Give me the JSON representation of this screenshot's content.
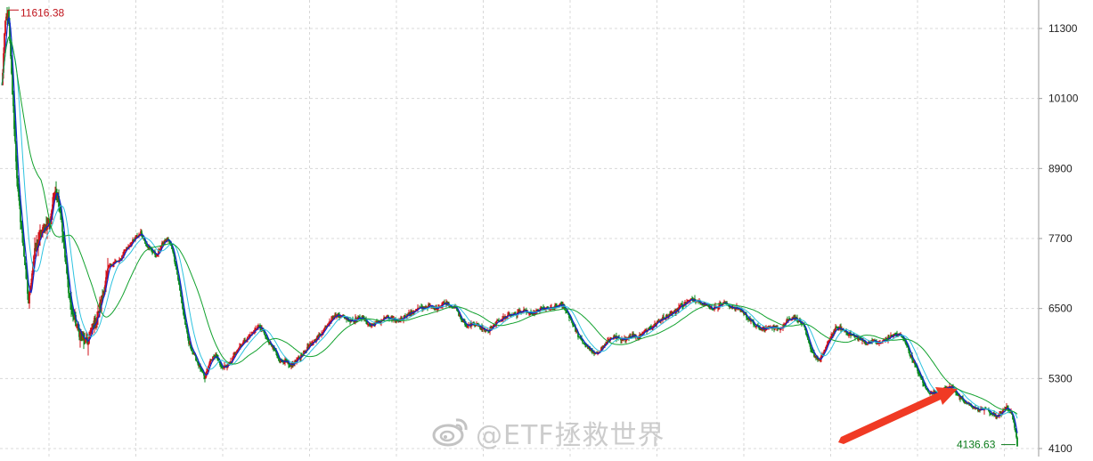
{
  "chart_data": {
    "type": "candlestick",
    "y_ticks": [
      4100,
      5300,
      6500,
      7700,
      8900,
      10100,
      11300
    ],
    "y_tick_labels": [
      "4100",
      "5300",
      "6500",
      "7700",
      "8900",
      "10100",
      "11300"
    ],
    "ylim": [
      4000,
      11900
    ],
    "grid": true,
    "annotations": {
      "high": 11616.38,
      "high_label": "11616.38",
      "low": 4136.63,
      "low_label": "4136.63"
    },
    "key_path": [
      [
        0,
        10300
      ],
      [
        4,
        11400
      ],
      [
        7,
        11616.38
      ],
      [
        12,
        10200
      ],
      [
        18,
        8500
      ],
      [
        24,
        7600
      ],
      [
        30,
        6600
      ],
      [
        36,
        7400
      ],
      [
        42,
        7700
      ],
      [
        48,
        7900
      ],
      [
        54,
        8000
      ],
      [
        60,
        8600
      ],
      [
        66,
        8200
      ],
      [
        72,
        7200
      ],
      [
        78,
        6500
      ],
      [
        84,
        6200
      ],
      [
        90,
        6000
      ],
      [
        96,
        5900
      ],
      [
        102,
        6200
      ],
      [
        108,
        6400
      ],
      [
        114,
        6800
      ],
      [
        120,
        7200
      ],
      [
        126,
        7300
      ],
      [
        132,
        7300
      ],
      [
        138,
        7500
      ],
      [
        144,
        7600
      ],
      [
        150,
        7700
      ],
      [
        156,
        7800
      ],
      [
        162,
        7600
      ],
      [
        168,
        7500
      ],
      [
        174,
        7400
      ],
      [
        180,
        7600
      ],
      [
        186,
        7700
      ],
      [
        192,
        7500
      ],
      [
        198,
        7000
      ],
      [
        204,
        6400
      ],
      [
        210,
        5900
      ],
      [
        216,
        5700
      ],
      [
        222,
        5500
      ],
      [
        228,
        5300
      ],
      [
        234,
        5600
      ],
      [
        240,
        5700
      ],
      [
        246,
        5500
      ],
      [
        252,
        5500
      ],
      [
        258,
        5600
      ],
      [
        264,
        5800
      ],
      [
        270,
        5900
      ],
      [
        276,
        6000
      ],
      [
        282,
        6100
      ],
      [
        288,
        6200
      ],
      [
        294,
        6100
      ],
      [
        300,
        5900
      ],
      [
        306,
        5800
      ],
      [
        312,
        5600
      ],
      [
        318,
        5600
      ],
      [
        324,
        5500
      ],
      [
        330,
        5600
      ],
      [
        336,
        5700
      ],
      [
        342,
        5800
      ],
      [
        348,
        5900
      ],
      [
        354,
        6000
      ],
      [
        360,
        6100
      ],
      [
        366,
        6250
      ],
      [
        372,
        6350
      ],
      [
        378,
        6400
      ],
      [
        384,
        6350
      ],
      [
        390,
        6300
      ],
      [
        396,
        6300
      ],
      [
        402,
        6350
      ],
      [
        408,
        6300
      ],
      [
        414,
        6200
      ],
      [
        420,
        6250
      ],
      [
        426,
        6300
      ],
      [
        432,
        6350
      ],
      [
        438,
        6300
      ],
      [
        444,
        6280
      ],
      [
        450,
        6350
      ],
      [
        456,
        6400
      ],
      [
        462,
        6450
      ],
      [
        468,
        6500
      ],
      [
        474,
        6500
      ],
      [
        480,
        6550
      ],
      [
        486,
        6500
      ],
      [
        492,
        6550
      ],
      [
        498,
        6600
      ],
      [
        504,
        6550
      ],
      [
        510,
        6500
      ],
      [
        516,
        6300
      ],
      [
        522,
        6200
      ],
      [
        528,
        6250
      ],
      [
        534,
        6200
      ],
      [
        540,
        6150
      ],
      [
        546,
        6100
      ],
      [
        552,
        6200
      ],
      [
        558,
        6300
      ],
      [
        564,
        6350
      ],
      [
        570,
        6400
      ],
      [
        576,
        6400
      ],
      [
        582,
        6450
      ],
      [
        588,
        6450
      ],
      [
        594,
        6400
      ],
      [
        600,
        6450
      ],
      [
        606,
        6500
      ],
      [
        612,
        6500
      ],
      [
        618,
        6500
      ],
      [
        624,
        6550
      ],
      [
        630,
        6550
      ],
      [
        636,
        6400
      ],
      [
        642,
        6200
      ],
      [
        648,
        6000
      ],
      [
        654,
        5900
      ],
      [
        660,
        5800
      ],
      [
        666,
        5700
      ],
      [
        672,
        5800
      ],
      [
        678,
        5900
      ],
      [
        684,
        6000
      ],
      [
        690,
        6000
      ],
      [
        696,
        5950
      ],
      [
        702,
        6000
      ],
      [
        708,
        6050
      ],
      [
        714,
        6000
      ],
      [
        720,
        6100
      ],
      [
        726,
        6150
      ],
      [
        732,
        6200
      ],
      [
        738,
        6300
      ],
      [
        744,
        6350
      ],
      [
        750,
        6400
      ],
      [
        756,
        6450
      ],
      [
        762,
        6550
      ],
      [
        768,
        6600
      ],
      [
        774,
        6650
      ],
      [
        780,
        6650
      ],
      [
        786,
        6600
      ],
      [
        792,
        6550
      ],
      [
        798,
        6500
      ],
      [
        804,
        6550
      ],
      [
        810,
        6600
      ],
      [
        816,
        6550
      ],
      [
        822,
        6500
      ],
      [
        828,
        6500
      ],
      [
        834,
        6400
      ],
      [
        840,
        6300
      ],
      [
        846,
        6200
      ],
      [
        852,
        6150
      ],
      [
        858,
        6150
      ],
      [
        864,
        6200
      ],
      [
        870,
        6150
      ],
      [
        876,
        6200
      ],
      [
        882,
        6300
      ],
      [
        888,
        6350
      ],
      [
        894,
        6300
      ],
      [
        900,
        6200
      ],
      [
        906,
        5900
      ],
      [
        912,
        5700
      ],
      [
        918,
        5600
      ],
      [
        924,
        5800
      ],
      [
        930,
        6000
      ],
      [
        936,
        6150
      ],
      [
        942,
        6150
      ],
      [
        948,
        6100
      ],
      [
        954,
        6050
      ],
      [
        960,
        6000
      ],
      [
        966,
        5950
      ],
      [
        972,
        5900
      ],
      [
        978,
        5950
      ],
      [
        984,
        5900
      ],
      [
        990,
        5950
      ],
      [
        996,
        6000
      ],
      [
        1002,
        6050
      ],
      [
        1008,
        6050
      ],
      [
        1014,
        5950
      ],
      [
        1020,
        5700
      ],
      [
        1026,
        5500
      ],
      [
        1032,
        5300
      ],
      [
        1038,
        5100
      ],
      [
        1044,
        5050
      ],
      [
        1050,
        5050
      ],
      [
        1056,
        5100
      ],
      [
        1062,
        5150
      ],
      [
        1068,
        5150
      ],
      [
        1074,
        5000
      ],
      [
        1080,
        4900
      ],
      [
        1086,
        4850
      ],
      [
        1092,
        4800
      ],
      [
        1098,
        4750
      ],
      [
        1104,
        4800
      ],
      [
        1110,
        4700
      ],
      [
        1116,
        4650
      ],
      [
        1122,
        4700
      ],
      [
        1128,
        4800
      ],
      [
        1134,
        4700
      ],
      [
        1138,
        4400
      ],
      [
        1140,
        4136.63
      ]
    ],
    "moving_averages": [
      {
        "color": "#0b26cc",
        "window": 5,
        "thickness": 1.2
      },
      {
        "color": "#2ec3e0",
        "window": 15,
        "thickness": 1.0
      },
      {
        "color": "#11a12d",
        "window": 45,
        "thickness": 1.0
      }
    ],
    "up_color": "#d01018",
    "down_color": "#0a8a1e",
    "grid_color": "#d8d8d8",
    "axis_color": "#999999",
    "arrow_color": "#f03a24"
  },
  "watermark": {
    "text": "@ETF拯救世界",
    "logo_icon": "weibo-logo-icon"
  }
}
